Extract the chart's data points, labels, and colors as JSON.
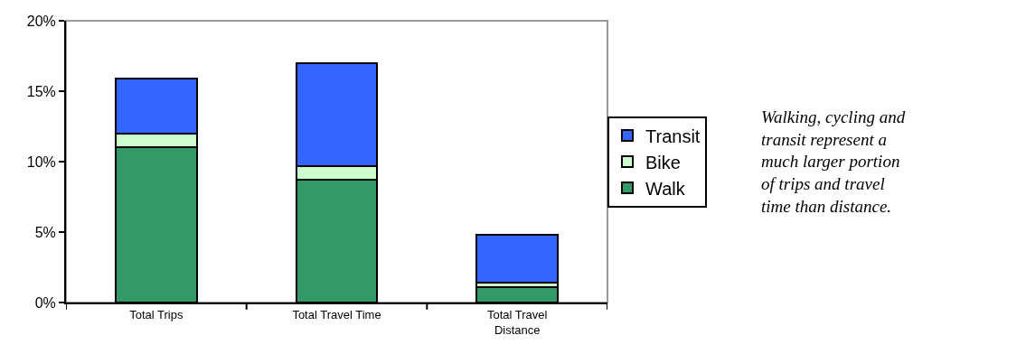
{
  "chart_data": {
    "type": "bar",
    "stacked": true,
    "categories": [
      "Total Trips",
      "Total Travel Time",
      "Total Travel Distance"
    ],
    "series": [
      {
        "name": "Walk",
        "color": "#339966",
        "values": [
          11,
          8.7,
          1.1
        ]
      },
      {
        "name": "Bike",
        "color": "#ccffcc",
        "values": [
          1.0,
          1.0,
          0.3
        ]
      },
      {
        "name": "Transit",
        "color": "#3366ff",
        "values": [
          3.9,
          7.3,
          3.4
        ]
      }
    ],
    "ylim": [
      0,
      20
    ],
    "yticks": [
      {
        "value": 0,
        "label": "0%"
      },
      {
        "value": 5,
        "label": "5%"
      },
      {
        "value": 10,
        "label": "10%"
      },
      {
        "value": 15,
        "label": "15%"
      },
      {
        "value": 20,
        "label": "20%"
      }
    ],
    "grid": false,
    "legend": "right",
    "annotations": [
      "Walking, cycling and transit represent a much larger portion of trips and travel time than distance."
    ]
  }
}
